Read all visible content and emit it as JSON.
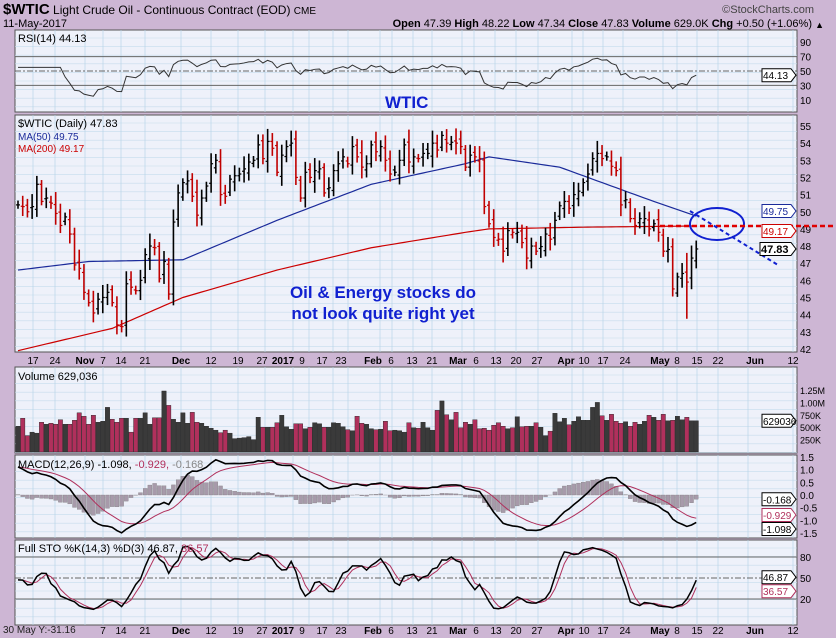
{
  "header": {
    "symbol": "$WTIC",
    "name": "Light Crude Oil - Continuous Contract (EOD)",
    "exchange": "CME",
    "date": "11-May-2017",
    "watermark": "©StockCharts.com",
    "quote": {
      "open_label": "Open",
      "open": "47.39",
      "high_label": "High",
      "high": "48.22",
      "low_label": "Low",
      "low": "47.34",
      "close_label": "Close",
      "close": "47.83",
      "volume_label": "Volume",
      "volume": "629.0K",
      "chg_label": "Chg",
      "chg": "+0.50 (+1.06%)"
    }
  },
  "annotations": {
    "title": "WTIC",
    "comment_line1": "Oil & Energy stocks do",
    "comment_line2": "not look quite right yet"
  },
  "footer": {
    "cursor_readout": "30 May Y:-31.16"
  },
  "colors": {
    "up": "#000000",
    "down": "#c00000",
    "ma50": "#1a2a9a",
    "ma200": "#cc0000",
    "vol_up": "#3a3a3a",
    "vol_down": "#b0305c",
    "annot": "#1020d0"
  },
  "chart_data": [
    {
      "type": "line",
      "title": "RSI(14) 44.13",
      "legend": "RSI(14) 44.13",
      "ylim": [
        0,
        100
      ],
      "yticks": [
        "90",
        "70",
        "50",
        "30",
        "10"
      ],
      "last_value": "44.13",
      "reference_lines": [
        70,
        50,
        30
      ]
    },
    {
      "type": "ohlc",
      "title": "$WTIC (Daily) 47.83",
      "legend": [
        "$WTIC (Daily) 47.83",
        "MA(50) 49.75",
        "MA(200) 49.17"
      ],
      "ylim": [
        42,
        55.6
      ],
      "yticks": [
        "55",
        "54",
        "53",
        "52",
        "51",
        "50",
        "49",
        "48",
        "47",
        "46",
        "45",
        "44",
        "43",
        "42"
      ],
      "tags": {
        "ma50": "49.75",
        "ma200": "49.17",
        "close": "47.83"
      },
      "closes": [
        50.4,
        50.3,
        50.0,
        50.3,
        51.6,
        50.6,
        50.8,
        50.5,
        49.9,
        49.2,
        49.7,
        48.7,
        46.9,
        46.7,
        45.3,
        44.7,
        44.1,
        44.9,
        45.0,
        45.3,
        44.7,
        43.4,
        43.3,
        45.8,
        45.6,
        45.4,
        46.0,
        47.5,
        48.0,
        47.9,
        46.1,
        47.1,
        45.2,
        49.4,
        51.1,
        51.7,
        51.8,
        50.9,
        49.8,
        50.8,
        51.5,
        52.8,
        53.0,
        51.0,
        50.9,
        51.9,
        52.1,
        52.2,
        52.5,
        52.9,
        53.0,
        53.9,
        53.1,
        54.1,
        53.7,
        52.3,
        53.3,
        53.8,
        54.0,
        52.0,
        50.8,
        52.3,
        52.0,
        52.4,
        52.5,
        51.1,
        51.4,
        52.4,
        52.8,
        53.2,
        52.8,
        53.8,
        53.2,
        52.6,
        52.8,
        53.9,
        53.5,
        53.8,
        53.0,
        52.2,
        52.3,
        53.0,
        53.9,
        52.9,
        53.2,
        53.1,
        53.4,
        53.4,
        54.0,
        53.6,
        54.45,
        54.0,
        54.05,
        54.0,
        53.8,
        52.6,
        53.3,
        53.2,
        53.1,
        50.3,
        49.3,
        48.5,
        48.4,
        47.7,
        48.9,
        48.8,
        48.8,
        48.2,
        47.3,
        48.0,
        47.7,
        47.97,
        48.7,
        48.4,
        49.5,
        50.35,
        50.6,
        50.2,
        51.0,
        51.2,
        51.7,
        52.2,
        53.1,
        53.4,
        53.1,
        53.2,
        52.65,
        52.4,
        50.4,
        50.7,
        49.6,
        49.2,
        49.6,
        49.6,
        49.0,
        49.3,
        48.8,
        47.7,
        47.8,
        45.5,
        46.2,
        46.4,
        45.9,
        47.3,
        47.83
      ],
      "ma50_points": [
        [
          0,
          46.6
        ],
        [
          15,
          47.1
        ],
        [
          35,
          47.2
        ],
        [
          55,
          49.5
        ],
        [
          75,
          51.6
        ],
        [
          95,
          52.8
        ],
        [
          100,
          53.2
        ],
        [
          115,
          52.6
        ],
        [
          125,
          51.6
        ],
        [
          135,
          50.6
        ],
        [
          144,
          49.75
        ]
      ],
      "ma200_points": [
        [
          0,
          41.9
        ],
        [
          20,
          43.2
        ],
        [
          35,
          45.0
        ],
        [
          55,
          46.6
        ],
        [
          75,
          47.9
        ],
        [
          95,
          48.8
        ],
        [
          100,
          49.0
        ],
        [
          120,
          49.1
        ],
        [
          144,
          49.17
        ]
      ],
      "xticks": [
        "17",
        "24",
        "Nov",
        "7",
        "14",
        "21",
        "Dec",
        "12",
        "19",
        "27",
        "2017",
        "9",
        "17",
        "23",
        "Feb",
        "6",
        "13",
        "21",
        "Mar",
        "6",
        "13",
        "20",
        "27",
        "Apr",
        "10",
        "17",
        "24",
        "May",
        "8",
        "15",
        "22",
        "Jun",
        "12"
      ]
    },
    {
      "type": "bar",
      "title": "Volume 629,036",
      "legend": "Volume 629,036",
      "ylim": [
        0,
        1300000
      ],
      "yticks": [
        "1.25M",
        "1.00M",
        "750K",
        "500K",
        "250K"
      ],
      "last_value": "629036",
      "values_k": [
        520,
        680,
        330,
        400,
        380,
        600,
        560,
        580,
        560,
        650,
        560,
        560,
        640,
        790,
        720,
        560,
        740,
        600,
        620,
        900,
        660,
        600,
        680,
        680,
        400,
        680,
        680,
        790,
        560,
        690,
        690,
        1230,
        940,
        660,
        600,
        790,
        580,
        800,
        600,
        580,
        520,
        480,
        440,
        390,
        440,
        380,
        270,
        280,
        290,
        310,
        250,
        700,
        500,
        500,
        500,
        590,
        740,
        510,
        460,
        570,
        570,
        470,
        500,
        590,
        570,
        500,
        500,
        590,
        580,
        510,
        450,
        430,
        720,
        580,
        560,
        470,
        450,
        460,
        620,
        430,
        440,
        430,
        400,
        590,
        490,
        480,
        600,
        490,
        440,
        840,
        1030,
        750,
        650,
        800,
        490,
        600,
        560,
        650,
        470,
        480,
        440,
        540,
        590,
        520,
        470,
        490,
        710,
        510,
        520,
        520,
        590,
        500,
        330,
        420,
        780,
        610,
        680,
        550,
        620,
        710,
        640,
        640,
        900,
        1000,
        730,
        640,
        760,
        620,
        580,
        610,
        520,
        600,
        560,
        620,
        740,
        700,
        640,
        760,
        629,
        640,
        720,
        650,
        700,
        630,
        629
      ],
      "xticks": [
        "7",
        "14",
        "21",
        "Dec",
        "12",
        "19",
        "27",
        "2017",
        "9",
        "17",
        "23",
        "Feb",
        "6",
        "13",
        "21",
        "Mar",
        "6",
        "13",
        "20",
        "27",
        "Apr",
        "10",
        "17",
        "24",
        "May",
        "8",
        "15",
        "22",
        "Jun",
        "12"
      ]
    },
    {
      "type": "line",
      "title": "MACD(12,26,9)",
      "legend": [
        "MACD(12,26,9)",
        "-1.098,",
        "-0.929,",
        "-0.168"
      ],
      "ylim": [
        -1.6,
        1.7
      ],
      "yticks": [
        "1.5",
        "1.0",
        "0.5",
        "0.0",
        "-0.5",
        "-1.0",
        "-1.5"
      ],
      "tags": {
        "hist": "-0.168",
        "signal": "-0.929",
        "macd": "-1.098"
      }
    },
    {
      "type": "line",
      "title": "Full STO %K(14,3) %D(3)",
      "legend": [
        "Full STO %K(14,3) %D(3) 46.87,",
        "36.57"
      ],
      "ylim": [
        0,
        100
      ],
      "yticks": [
        "80",
        "50",
        "20"
      ],
      "tags": {
        "k": "46.87",
        "d": "36.57"
      }
    }
  ]
}
